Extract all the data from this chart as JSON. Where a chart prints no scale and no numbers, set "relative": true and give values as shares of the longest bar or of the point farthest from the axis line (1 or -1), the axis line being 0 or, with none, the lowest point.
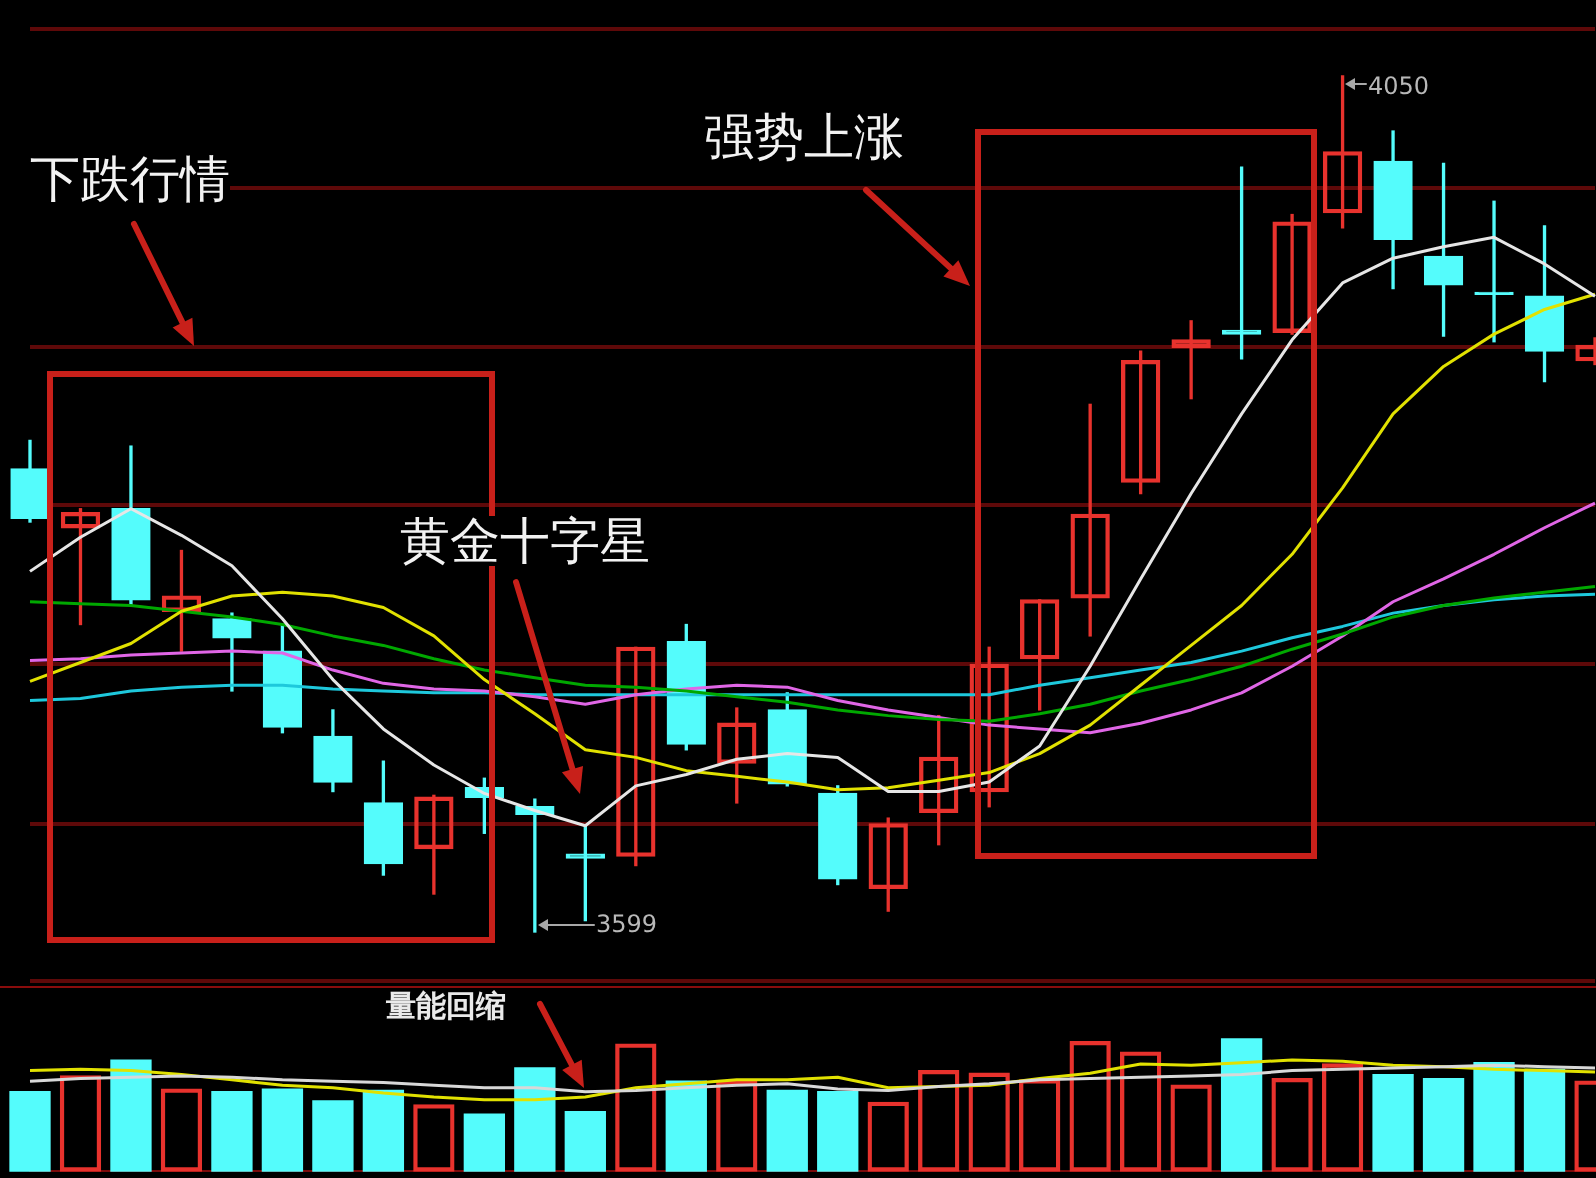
{
  "chart_data": [
    {
      "type": "candlestick",
      "categories": [
        null,
        null,
        null,
        null,
        null,
        null,
        null,
        null,
        null,
        null,
        null,
        null,
        null,
        null,
        null,
        null,
        null,
        null,
        null,
        null,
        null,
        null,
        null,
        null,
        null,
        null,
        null,
        null,
        null,
        null,
        null,
        null
      ],
      "ohlc": [
        [
          3843,
          3858,
          3815,
          3817
        ],
        [
          3812,
          3822,
          3761,
          3820
        ],
        [
          3822,
          3855,
          3771,
          3774
        ],
        [
          3768,
          3800,
          3747,
          3776
        ],
        [
          3764,
          3767,
          3726,
          3754
        ],
        [
          3747,
          3761,
          3704,
          3707
        ],
        [
          3702,
          3716,
          3673,
          3678
        ],
        [
          3667,
          3689,
          3629,
          3635
        ],
        [
          3643,
          3671,
          3619,
          3670
        ],
        [
          3675,
          3680,
          3651,
          3670
        ],
        [
          3665,
          3669,
          3599,
          3661
        ],
        [
          3640,
          3655,
          3605,
          3638
        ],
        [
          3639,
          3749,
          3634,
          3749
        ],
        [
          3752,
          3761,
          3695,
          3698
        ],
        [
          3688,
          3717,
          3667,
          3709
        ],
        [
          3716,
          3725,
          3676,
          3677
        ],
        [
          3672,
          3676,
          3624,
          3627
        ],
        [
          3622,
          3659,
          3610,
          3656
        ],
        [
          3662,
          3713,
          3645,
          3691
        ],
        [
          3673,
          3749,
          3665,
          3740
        ],
        [
          3743,
          3774,
          3716,
          3774
        ],
        [
          3775,
          3877,
          3755,
          3819
        ],
        [
          3836,
          3905,
          3830,
          3900
        ],
        [
          3907,
          3921,
          3880,
          3911
        ],
        [
          3916,
          4002,
          3901,
          3914
        ],
        [
          3915,
          3977,
          3914,
          3973
        ],
        [
          3978,
          4050,
          3970,
          4010
        ],
        [
          4005,
          4021,
          3938,
          3964
        ],
        [
          3955,
          4004,
          3913,
          3940
        ],
        [
          3936,
          3984,
          3910,
          3935
        ],
        [
          3934,
          3971,
          3889,
          3905
        ],
        [
          3900,
          3912,
          3898,
          3908
        ]
      ],
      "colors": [
        "#54fcfc",
        "#e8322d",
        "#54fcfc",
        "#e8322d",
        "#54fcfc",
        "#54fcfc",
        "#54fcfc",
        "#54fcfc",
        "#e8322d",
        "#54fcfc",
        "#54fcfc",
        "#54fcfc",
        "#e8322d",
        "#54fcfc",
        "#e8322d",
        "#54fcfc",
        "#54fcfc",
        "#e8322d",
        "#e8322d",
        "#e8322d",
        "#e8322d",
        "#e8322d",
        "#e8322d",
        "#e8322d",
        "#54fcfc",
        "#e8322d",
        "#e8322d",
        "#54fcfc",
        "#54fcfc",
        "#54fcfc",
        "#54fcfc",
        "#e8322d"
      ],
      "series": [
        {
          "type": "line",
          "color": "#e6e6e6",
          "values": [
            3789,
            3807,
            3822,
            3808,
            3792,
            3764,
            3732,
            3706,
            3687,
            3672,
            3663,
            3655,
            3676,
            3682,
            3690,
            3693,
            3691,
            3673,
            3673,
            3678,
            3697,
            3739,
            3785,
            3830,
            3872,
            3911,
            3941,
            3954,
            3960,
            3965,
            3951,
            3934
          ]
        },
        {
          "type": "line",
          "color": "#e1e100",
          "values": [
            3731,
            3741,
            3751,
            3768,
            3776,
            3778,
            3776,
            3770,
            3755,
            3732,
            3714,
            3695,
            3691,
            3684,
            3681,
            3678,
            3674,
            3675,
            3679,
            3683,
            3693,
            3708,
            3729,
            3750,
            3771,
            3798,
            3833,
            3872,
            3897,
            3914,
            3927,
            3935
          ]
        },
        {
          "type": "line",
          "color": "#00a800",
          "values": [
            3773,
            3772,
            3771,
            3768,
            3765,
            3761,
            3755,
            3750,
            3743,
            3737,
            3733,
            3729,
            3728,
            3726,
            3723,
            3720,
            3716,
            3713,
            3711,
            3710,
            3714,
            3719,
            3726,
            3732,
            3739,
            3748,
            3756,
            3765,
            3771,
            3775,
            3778,
            3781
          ]
        },
        {
          "type": "line",
          "color": "#e066e6",
          "values": [
            3742,
            3743,
            3745,
            3746,
            3747,
            3746,
            3737,
            3730,
            3727,
            3726,
            3723,
            3719,
            3724,
            3727,
            3729,
            3728,
            3721,
            3716,
            3712,
            3708,
            3706,
            3704,
            3709,
            3716,
            3725,
            3739,
            3755,
            3773,
            3785,
            3798,
            3812,
            3825
          ]
        },
        {
          "type": "line",
          "color": "#1ec8dc",
          "values": [
            3721,
            3722,
            3726,
            3728,
            3729,
            3729,
            3727,
            3726,
            3725,
            3725,
            3724,
            3724,
            3724,
            3724,
            3724,
            3724,
            3724,
            3724,
            3724,
            3724,
            3729,
            3733,
            3737,
            3741,
            3747,
            3754,
            3760,
            3767,
            3771,
            3774,
            3776,
            3777
          ]
        }
      ],
      "yticks": [
        {
          "value": 3573,
          "label": null
        },
        {
          "value": 3656,
          "label": null
        },
        {
          "value": 3740,
          "label": null
        },
        {
          "value": 3824,
          "label": null
        },
        {
          "value": 3907,
          "label": null
        },
        {
          "value": 3991,
          "label": null
        },
        {
          "value": 4075,
          "label": null
        }
      ],
      "grid": "y",
      "annotations": [
        "下跌行情",
        "强势上涨",
        "黄金十字星",
        "4050",
        "3599"
      ]
    },
    {
      "type": "bar",
      "relative": true,
      "categories": [
        null,
        null,
        null,
        null,
        null,
        null,
        null,
        null,
        null,
        null,
        null,
        null,
        null,
        null,
        null,
        null,
        null,
        null,
        null,
        null,
        null,
        null,
        null,
        null,
        null,
        null,
        null,
        null,
        null,
        null,
        null,
        null
      ],
      "series": [
        {
          "type": "bar",
          "colors": [
            "#54fcfc",
            "#e8322d",
            "#54fcfc",
            "#e8322d",
            "#54fcfc",
            "#54fcfc",
            "#54fcfc",
            "#54fcfc",
            "#e8322d",
            "#54fcfc",
            "#54fcfc",
            "#54fcfc",
            "#e8322d",
            "#54fcfc",
            "#e8322d",
            "#54fcfc",
            "#54fcfc",
            "#e8322d",
            "#e8322d",
            "#e8322d",
            "#e8322d",
            "#e8322d",
            "#e8322d",
            "#e8322d",
            "#54fcfc",
            "#e8322d",
            "#e8322d",
            "#54fcfc",
            "#54fcfc",
            "#54fcfc",
            "#54fcfc",
            "#e8322d"
          ],
          "values": [
            0.6,
            0.72,
            0.84,
            0.62,
            0.6,
            0.62,
            0.53,
            0.61,
            0.5,
            0.43,
            0.78,
            0.45,
            0.96,
            0.68,
            0.68,
            0.61,
            0.6,
            0.52,
            0.76,
            0.74,
            0.69,
            0.98,
            0.9,
            0.65,
            1,
            0.7,
            0.81,
            0.73,
            0.7,
            0.82,
            0.77,
            0.68
          ]
        },
        {
          "type": "line",
          "color": "#d8d8d8",
          "values": [
            0.68,
            0.7,
            0.71,
            0.72,
            0.71,
            0.69,
            0.68,
            0.67,
            0.65,
            0.63,
            0.63,
            0.6,
            0.61,
            0.63,
            0.65,
            0.66,
            0.62,
            0.61,
            0.64,
            0.66,
            0.69,
            0.7,
            0.71,
            0.72,
            0.73,
            0.76,
            0.77,
            0.78,
            0.79,
            0.8,
            0.79,
            0.78
          ]
        },
        {
          "type": "line",
          "color": "#e1e100",
          "values": [
            0.76,
            0.77,
            0.76,
            0.73,
            0.69,
            0.65,
            0.63,
            0.59,
            0.56,
            0.54,
            0.54,
            0.56,
            0.63,
            0.66,
            0.69,
            0.69,
            0.71,
            0.63,
            0.64,
            0.65,
            0.7,
            0.74,
            0.81,
            0.8,
            0.82,
            0.84,
            0.83,
            0.8,
            0.79,
            0.77,
            0.76,
            0.75
          ]
        }
      ],
      "annotations": [
        "量能回缩"
      ]
    }
  ]
}
